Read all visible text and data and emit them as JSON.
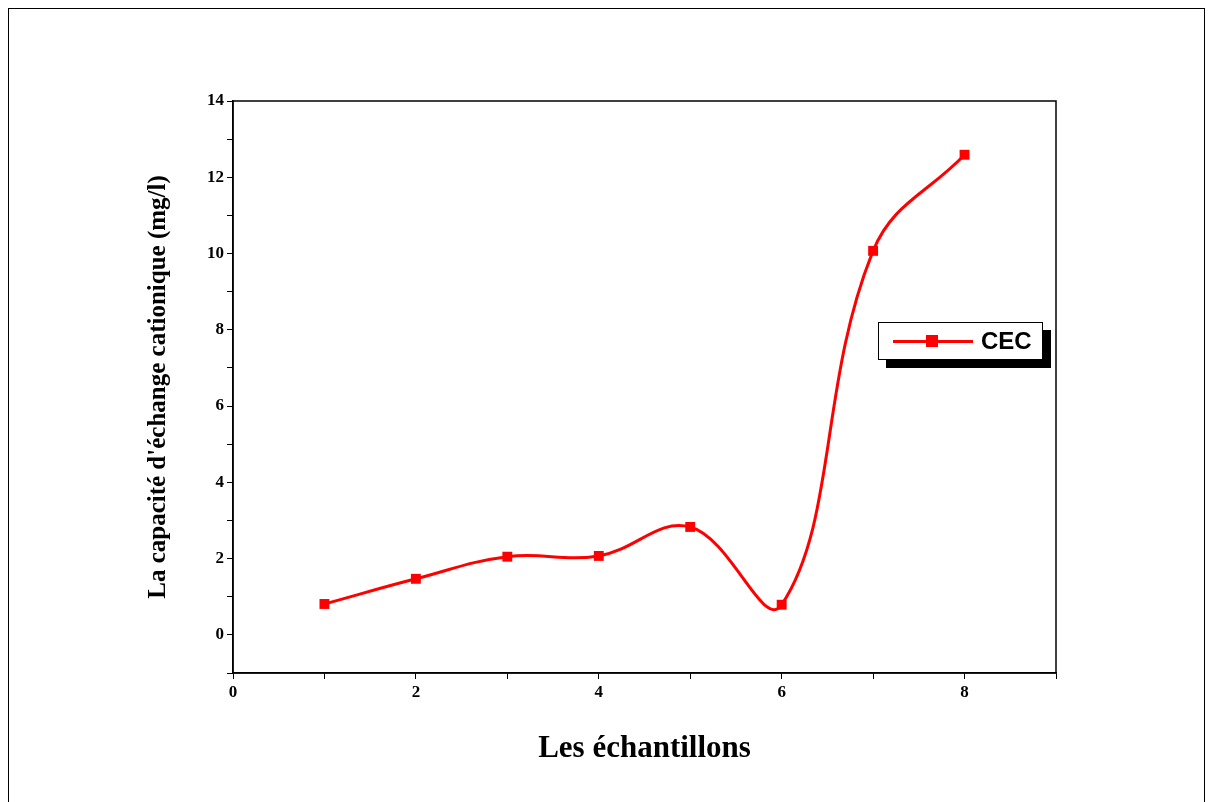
{
  "chart_data": {
    "type": "line",
    "xlabel": "Les échantillons",
    "ylabel": "La capacité d'échange cationique (mg/l)",
    "x": [
      1,
      2,
      3,
      4,
      5,
      6,
      7,
      8
    ],
    "series": [
      {
        "name": "CEC",
        "color": "#ff0000",
        "values": [
          0.81,
          1.47,
          2.05,
          2.07,
          2.83,
          0.79,
          10.07,
          12.59
        ]
      }
    ],
    "xlim": [
      0,
      9
    ],
    "xticks": [
      0,
      {
        "value": 1,
        "label": null
      },
      2,
      {
        "value": 3,
        "label": null
      },
      4,
      {
        "value": 5,
        "label": null
      },
      6,
      {
        "value": 7,
        "label": null
      },
      8,
      {
        "value": 9,
        "label": null
      }
    ],
    "ylim": [
      -1,
      14
    ],
    "yticks": [
      {
        "value": -1,
        "label": null
      },
      0,
      {
        "value": 1,
        "label": null
      },
      2,
      {
        "value": 3,
        "label": null
      },
      4,
      {
        "value": 5,
        "label": null
      },
      6,
      {
        "value": 7,
        "label": null
      },
      8,
      {
        "value": 9,
        "label": null
      },
      10,
      {
        "value": 11,
        "label": null
      },
      12,
      {
        "value": 13,
        "label": null
      },
      14
    ],
    "grid": false,
    "legend": "right",
    "marker": "square",
    "line_style": "solid"
  }
}
